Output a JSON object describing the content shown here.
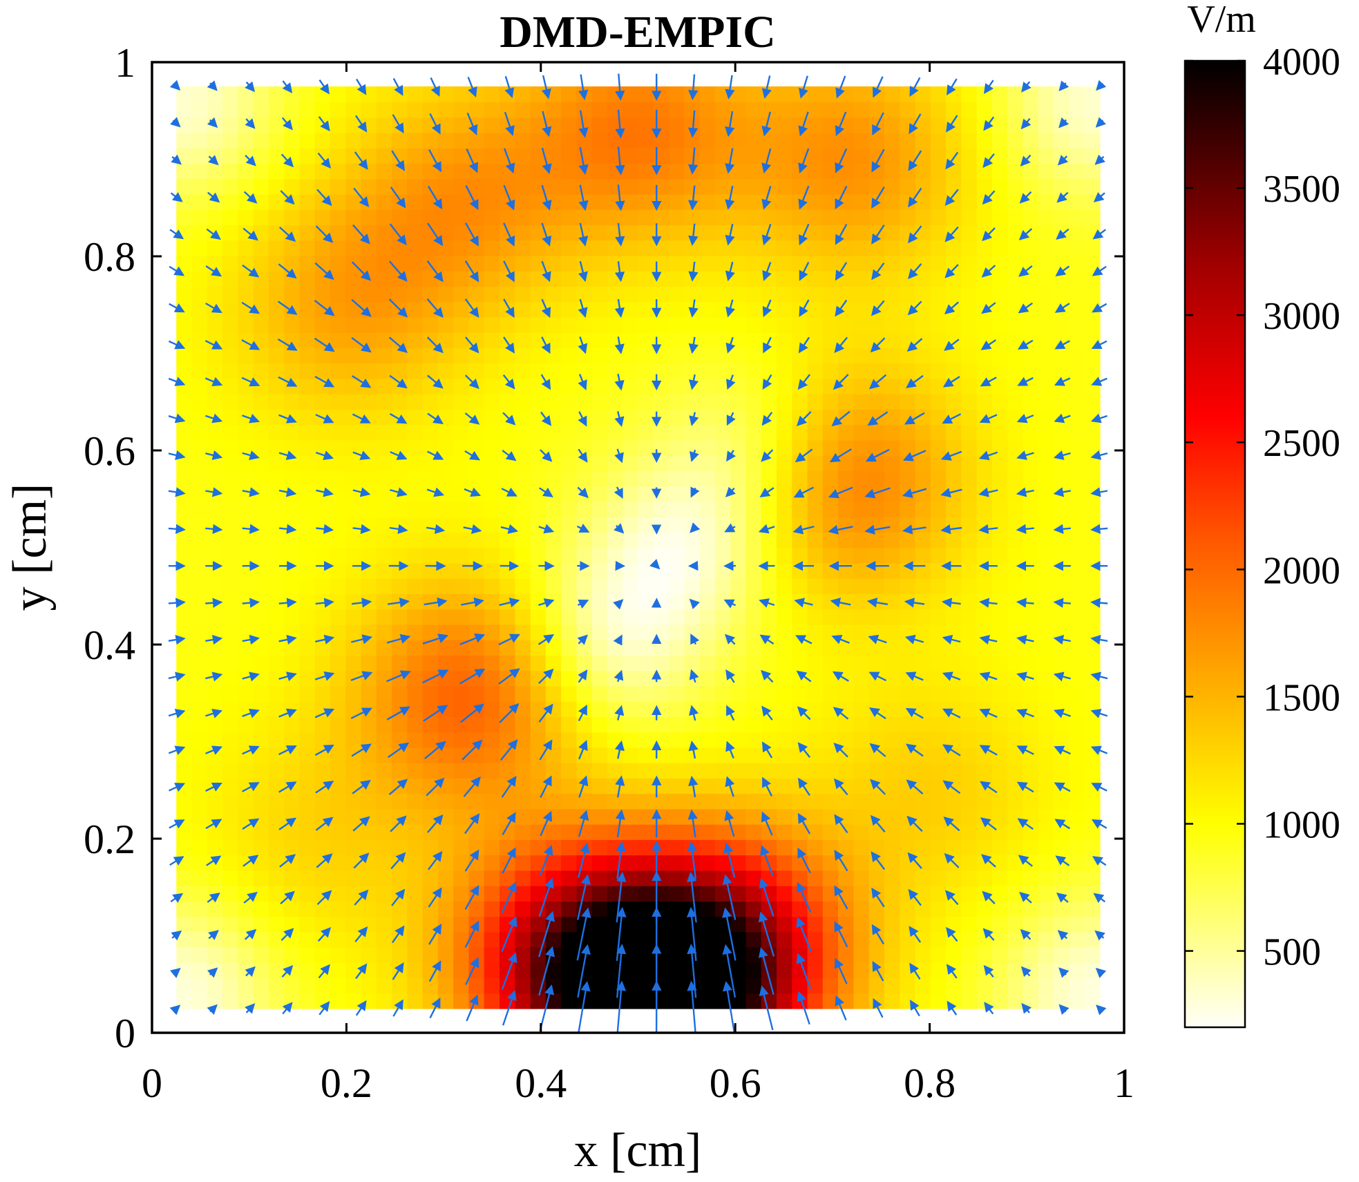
{
  "chart_data": {
    "type": "heatmap",
    "title": "DMD-EMPIC",
    "xlabel": "x [cm]",
    "ylabel": "y [cm]",
    "xlim": [
      0,
      1
    ],
    "ylim": [
      0,
      1
    ],
    "x_ticks": [
      0,
      0.2,
      0.4,
      0.6,
      0.8,
      1
    ],
    "x_tick_labels": [
      "0",
      "0.2",
      "0.4",
      "0.6",
      "0.8",
      "1"
    ],
    "y_ticks": [
      0,
      0.2,
      0.4,
      0.6,
      0.8,
      1
    ],
    "y_tick_labels": [
      "0",
      "0.2",
      "0.4",
      "0.6",
      "0.8",
      "1"
    ],
    "field_extent": [
      0.025,
      0.975
    ],
    "colorbar": {
      "unit_label": "V/m",
      "range": [
        200,
        4000
      ],
      "ticks": [
        500,
        1000,
        1500,
        2000,
        2500,
        3000,
        3500,
        4000
      ],
      "tick_labels": [
        "500",
        "1000",
        "1500",
        "2000",
        "2500",
        "3000",
        "3500",
        "4000"
      ],
      "colormap": "hot (reversed)",
      "colormap_stops": [
        {
          "value": 200,
          "color": "#fffff8"
        },
        {
          "value": 1000,
          "color": "#ffff00"
        },
        {
          "value": 1600,
          "color": "#ffa500"
        },
        {
          "value": 2100,
          "color": "#ff5a00"
        },
        {
          "value": 2600,
          "color": "#ff0000"
        },
        {
          "value": 3200,
          "color": "#a00000"
        },
        {
          "value": 4000,
          "color": "#000000"
        }
      ]
    },
    "background_field": 950,
    "features": [
      {
        "kind": "peak",
        "name": "bottom-hotspot",
        "x": 0.52,
        "y": 0.03,
        "value": 4000
      },
      {
        "kind": "peak",
        "name": "bottom-left-lobe",
        "x": 0.43,
        "y": 0.08,
        "value": 2900
      },
      {
        "kind": "peak",
        "name": "bottom-right-lobe",
        "x": 0.6,
        "y": 0.09,
        "value": 2800
      },
      {
        "kind": "peak",
        "name": "top-band-center",
        "x": 0.5,
        "y": 0.93,
        "value": 1950
      },
      {
        "kind": "peak",
        "name": "top-band-left",
        "x": 0.32,
        "y": 0.86,
        "value": 1700
      },
      {
        "kind": "peak",
        "name": "top-band-right",
        "x": 0.72,
        "y": 0.9,
        "value": 1800
      },
      {
        "kind": "peak",
        "name": "left-ring",
        "x": 0.33,
        "y": 0.35,
        "value": 2200
      },
      {
        "kind": "peak",
        "name": "right-ring",
        "x": 0.71,
        "y": 0.57,
        "value": 2100
      },
      {
        "kind": "peak",
        "name": "upper-left-ring",
        "x": 0.2,
        "y": 0.75,
        "value": 1650
      },
      {
        "kind": "peak",
        "name": "lower-left-band",
        "x": 0.17,
        "y": 0.2,
        "value": 1300
      },
      {
        "kind": "peak",
        "name": "lower-right-band",
        "x": 0.8,
        "y": 0.25,
        "value": 1350
      },
      {
        "kind": "trough",
        "name": "center-low-1",
        "x": 0.46,
        "y": 0.4,
        "value": 250
      },
      {
        "kind": "trough",
        "name": "center-low-2",
        "x": 0.55,
        "y": 0.5,
        "value": 300
      },
      {
        "kind": "trough",
        "name": "center-low-3",
        "x": 0.63,
        "y": 0.6,
        "value": 350
      },
      {
        "kind": "trough",
        "name": "corner-bottom-left",
        "x": 0.03,
        "y": 0.04,
        "value": 250
      },
      {
        "kind": "trough",
        "name": "corner-bottom-right",
        "x": 0.97,
        "y": 0.04,
        "value": 250
      },
      {
        "kind": "trough",
        "name": "corner-top-left",
        "x": 0.03,
        "y": 0.96,
        "value": 300
      },
      {
        "kind": "trough",
        "name": "corner-top-right",
        "x": 0.97,
        "y": 0.96,
        "value": 300
      }
    ],
    "vector_field": {
      "type": "quiver",
      "color": "#1e6fe0",
      "description": "electric field arrows converging toward the center",
      "sink": {
        "x": 0.52,
        "y": 0.48
      },
      "grid_step": 0.025
    }
  }
}
